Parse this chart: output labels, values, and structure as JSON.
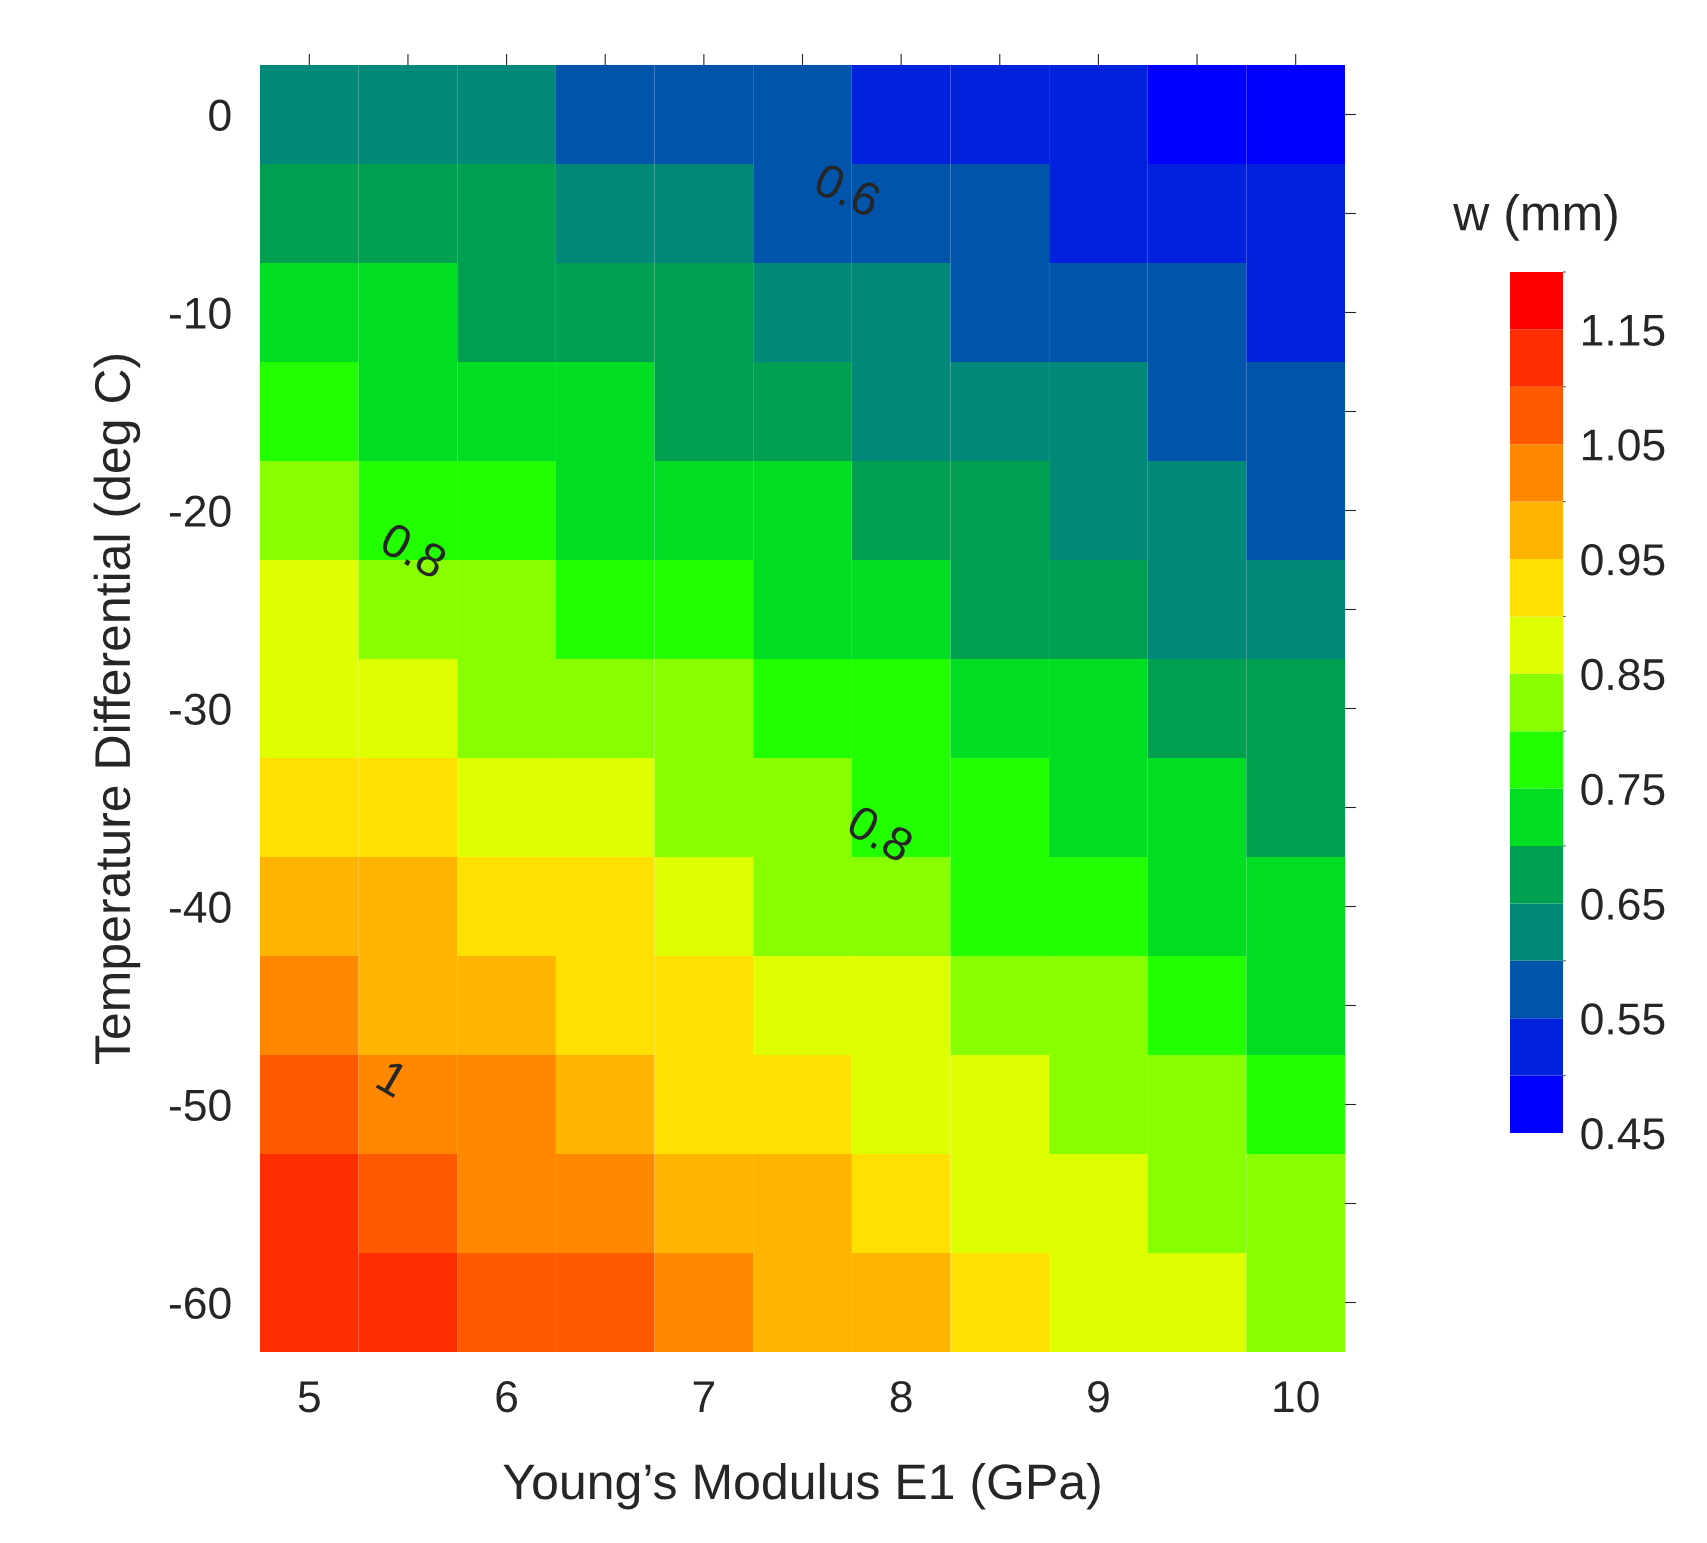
{
  "chart_data": {
    "type": "heatmap",
    "xlabel": "Young’s Modulus E1 (GPa)",
    "ylabel": "Temperature Differential (deg C)",
    "clabel": "w (mm)",
    "categories": [
      "5",
      null,
      "6",
      null,
      "7",
      null,
      "8",
      null,
      "9",
      null,
      "10"
    ],
    "y_categories": [
      "0",
      null,
      "-10",
      null,
      "-20",
      null,
      "-30",
      null,
      "-40",
      null,
      "-50",
      null,
      "-60"
    ],
    "cells": [
      [
        0.645,
        0.629,
        0.612,
        0.596,
        0.579,
        0.563,
        0.546,
        0.53,
        0.513,
        0.497,
        0.48
      ],
      [
        0.687,
        0.669,
        0.651,
        0.634,
        0.616,
        0.598,
        0.58,
        0.563,
        0.545,
        0.527,
        0.51
      ],
      [
        0.728,
        0.709,
        0.69,
        0.672,
        0.653,
        0.634,
        0.615,
        0.596,
        0.577,
        0.558,
        0.539
      ],
      [
        0.77,
        0.749,
        0.73,
        0.71,
        0.689,
        0.669,
        0.649,
        0.629,
        0.609,
        0.589,
        0.569
      ],
      [
        0.812,
        0.79,
        0.769,
        0.748,
        0.726,
        0.705,
        0.684,
        0.662,
        0.641,
        0.62,
        0.598
      ],
      [
        0.853,
        0.831,
        0.808,
        0.786,
        0.763,
        0.741,
        0.718,
        0.696,
        0.673,
        0.648,
        0.628
      ],
      [
        0.895,
        0.871,
        0.847,
        0.824,
        0.801,
        0.776,
        0.752,
        0.729,
        0.705,
        0.681,
        0.657
      ],
      [
        0.937,
        0.912,
        0.887,
        0.862,
        0.837,
        0.812,
        0.787,
        0.762,
        0.737,
        0.712,
        0.687
      ],
      [
        0.978,
        0.952,
        0.926,
        0.903,
        0.874,
        0.847,
        0.821,
        0.795,
        0.769,
        0.743,
        0.717
      ],
      [
        1.02,
        0.993,
        0.965,
        0.938,
        0.91,
        0.883,
        0.856,
        0.828,
        0.801,
        0.774,
        0.746
      ],
      [
        1.062,
        1.033,
        1.004,
        0.976,
        0.947,
        0.919,
        0.89,
        0.862,
        0.833,
        0.804,
        0.776
      ],
      [
        1.103,
        1.074,
        1.044,
        1.014,
        0.984,
        0.954,
        0.925,
        0.895,
        0.865,
        0.835,
        0.805
      ],
      [
        1.145,
        1.114,
        1.083,
        1.052,
        1.021,
        0.99,
        0.959,
        0.928,
        0.897,
        0.866,
        0.835
      ]
    ],
    "colors": [
      "#0000ff",
      "#0022dd",
      "#0055aa",
      "#008878",
      "#00a050",
      "#00dd22",
      "#22ff00",
      "#88ff00",
      "#ddff00",
      "#ffe000",
      "#ffb400",
      "#ff8800",
      "#ff5a00",
      "#ff2d00",
      "#ff0000"
    ],
    "clim": [
      0.45,
      1.2
    ],
    "cticks": [
      0.45,
      0.55,
      0.65,
      0.75,
      0.85,
      0.95,
      1.05,
      1.15
    ],
    "grid": false,
    "annotations": [
      "0.6",
      "0.8",
      "0.8",
      "1"
    ]
  }
}
